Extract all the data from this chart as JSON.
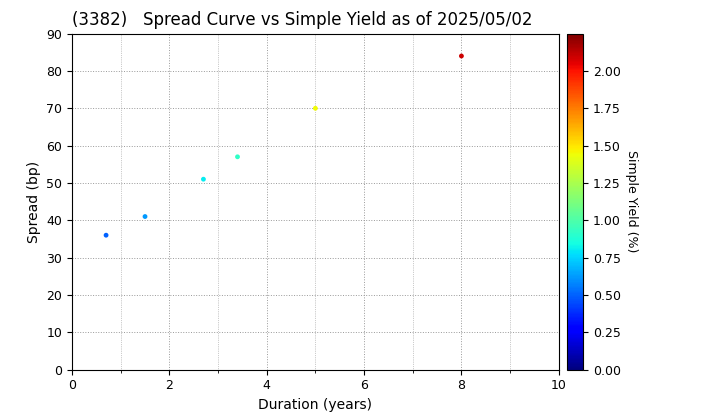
{
  "title": "(3382)   Spread Curve vs Simple Yield as of 2025/05/02",
  "xlabel": "Duration (years)",
  "ylabel": "Spread (bp)",
  "colorbar_label": "Simple Yield (%)",
  "xlim": [
    0,
    10
  ],
  "ylim": [
    0,
    90
  ],
  "xticks": [
    0,
    2,
    4,
    6,
    8,
    10
  ],
  "yticks": [
    0,
    10,
    20,
    30,
    40,
    50,
    60,
    70,
    80,
    90
  ],
  "points": [
    {
      "duration": 0.7,
      "spread": 36,
      "simple_yield": 0.5
    },
    {
      "duration": 1.5,
      "spread": 41,
      "simple_yield": 0.62
    },
    {
      "duration": 2.7,
      "spread": 51,
      "simple_yield": 0.8
    },
    {
      "duration": 3.4,
      "spread": 57,
      "simple_yield": 0.92
    },
    {
      "duration": 5.0,
      "spread": 70,
      "simple_yield": 1.45
    },
    {
      "duration": 8.0,
      "spread": 84,
      "simple_yield": 2.1
    }
  ],
  "colormap": "jet",
  "cbar_vmin": 0.0,
  "cbar_vmax": 2.25,
  "cbar_ticks": [
    0.0,
    0.25,
    0.5,
    0.75,
    1.0,
    1.25,
    1.5,
    1.75,
    2.0
  ],
  "marker_size": 12,
  "background_color": "#ffffff",
  "grid_color": "#999999",
  "title_fontsize": 12,
  "axis_label_fontsize": 10,
  "tick_fontsize": 9,
  "colorbar_fontsize": 9
}
